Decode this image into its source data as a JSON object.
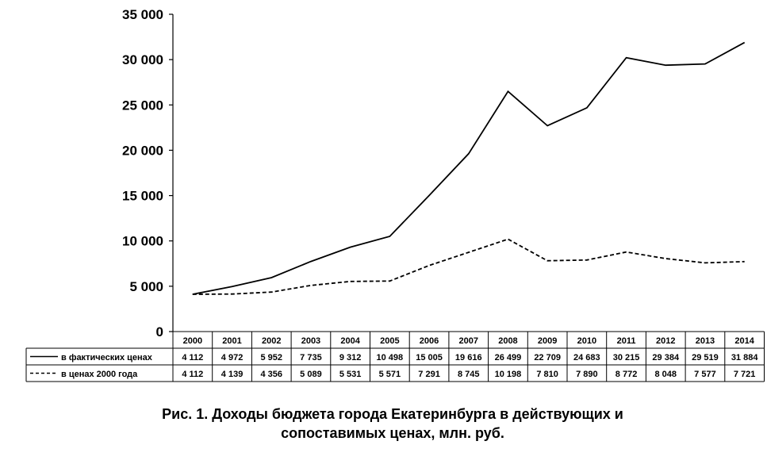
{
  "caption_line1": "Рис. 1. Доходы бюджета города Екатеринбурга в действующих и",
  "caption_line2": "сопоставимых ценах, млн. руб.",
  "chart_data": {
    "type": "line",
    "title": "Рис. 1. Доходы бюджета города Екатеринбурга в действующих и сопоставимых ценах, млн. руб.",
    "categories": [
      "2000",
      "2001",
      "2002",
      "2003",
      "2004",
      "2005",
      "2006",
      "2007",
      "2008",
      "2009",
      "2010",
      "2011",
      "2012",
      "2013",
      "2014"
    ],
    "series": [
      {
        "name": "в фактических ценах",
        "line_style": "solid",
        "values": [
          4112,
          4972,
          5952,
          7735,
          9312,
          10498,
          15005,
          19616,
          26499,
          22709,
          24683,
          30215,
          29384,
          29519,
          31884
        ],
        "labels": [
          "4 112",
          "4 972",
          "5 952",
          "7 735",
          "9 312",
          "10 498",
          "15 005",
          "19 616",
          "26 499",
          "22 709",
          "24 683",
          "30 215",
          "29 384",
          "29 519",
          "31 884"
        ]
      },
      {
        "name": "в ценах 2000 года",
        "line_style": "dashed",
        "values": [
          4112,
          4139,
          4356,
          5089,
          5531,
          5571,
          7291,
          8745,
          10198,
          7810,
          7890,
          8772,
          8048,
          7577,
          7721
        ],
        "labels": [
          "4 112",
          "4 139",
          "4 356",
          "5 089",
          "5 531",
          "5 571",
          "7 291",
          "8 745",
          "10 198",
          "7 810",
          "7 890",
          "8 772",
          "8 048",
          "7 577",
          "7 721"
        ]
      }
    ],
    "ylim": [
      0,
      35000
    ],
    "yticks": [
      0,
      5000,
      10000,
      15000,
      20000,
      25000,
      30000,
      35000
    ],
    "ytick_labels": [
      "0",
      "5 000",
      "10 000",
      "15 000",
      "20 000",
      "25 000",
      "30 000",
      "35 000"
    ],
    "grid": false,
    "legend": "data-table below chart",
    "colors": {
      "line": "#000000"
    }
  }
}
